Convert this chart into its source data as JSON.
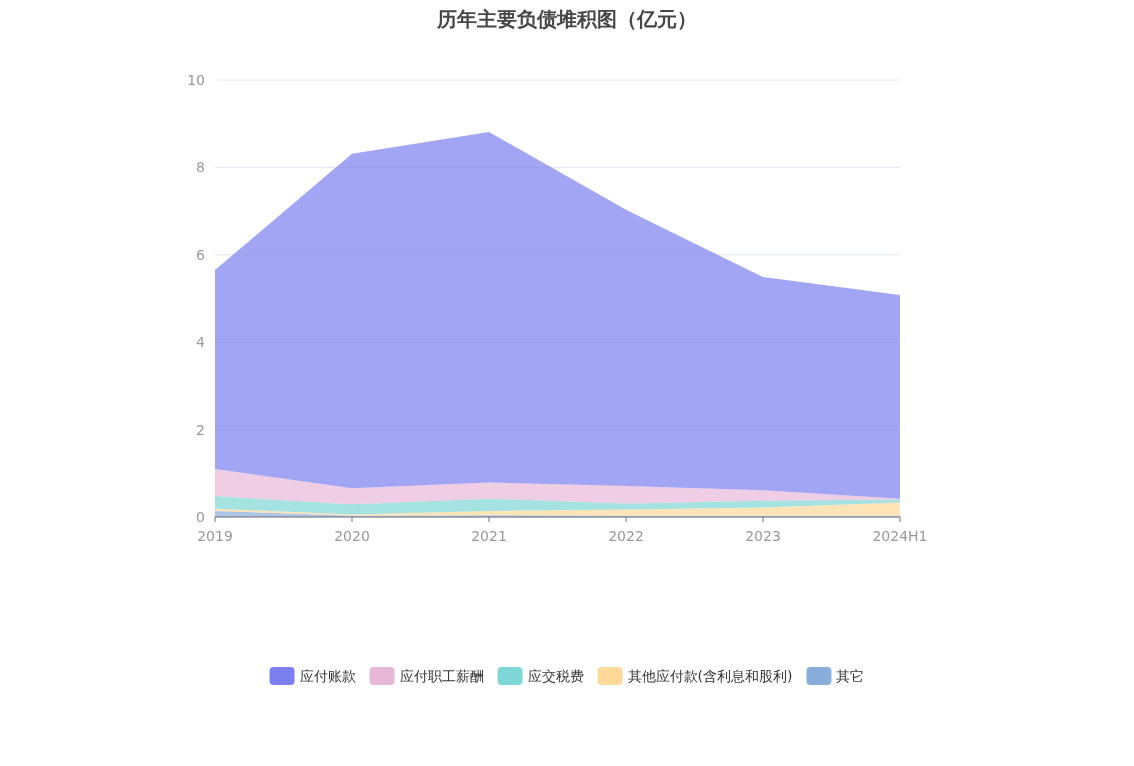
{
  "chart_data": {
    "type": "area",
    "title": "历年主要负债堆积图（亿元）",
    "categories": [
      "2019",
      "2020",
      "2021",
      "2022",
      "2023",
      "2024H1"
    ],
    "stacked": true,
    "grid": "y",
    "legend": "bottom",
    "ylim": [
      0,
      10
    ],
    "yticks": [
      0,
      2,
      4,
      6,
      8,
      10
    ],
    "series": [
      {
        "name": "其它",
        "color": "#8aaedc",
        "values": [
          0.14,
          0.03,
          0.04,
          0.03,
          0.03,
          0.03
        ]
      },
      {
        "name": "其他应付款(含利息和股利)",
        "color": "#ffd99a",
        "values": [
          0.05,
          0.03,
          0.1,
          0.14,
          0.19,
          0.3
        ]
      },
      {
        "name": "应交税费",
        "color": "#7fd6d6",
        "values": [
          0.29,
          0.23,
          0.28,
          0.14,
          0.15,
          0.07
        ]
      },
      {
        "name": "应付职工薪酬",
        "color": "#e8b8d8",
        "values": [
          0.62,
          0.37,
          0.37,
          0.4,
          0.24,
          0.02
        ]
      },
      {
        "name": "应付账款",
        "color": "#7b7ff0",
        "values": [
          4.55,
          7.65,
          8.02,
          6.32,
          4.88,
          4.66
        ]
      }
    ]
  }
}
